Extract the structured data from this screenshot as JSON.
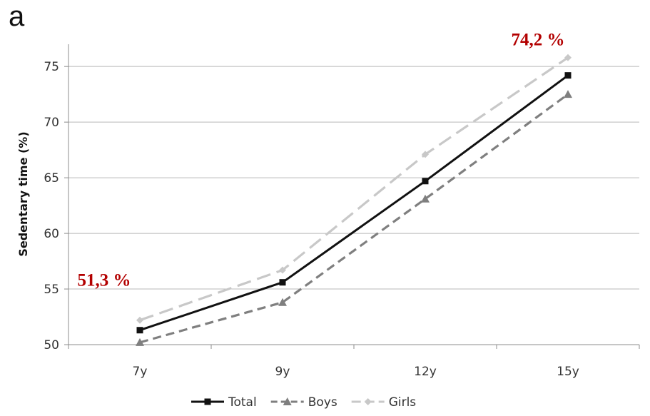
{
  "chart_data": {
    "type": "line",
    "panel_label": "a",
    "title": "",
    "xlabel": "",
    "ylabel": "Sedentary time (%)",
    "categories": [
      "7y",
      "9y",
      "12y",
      "15y"
    ],
    "ylim": [
      50,
      77
    ],
    "yticks": [
      50,
      55,
      60,
      65,
      70,
      75
    ],
    "grid": "horizontal",
    "legend_position": "bottom",
    "series": [
      {
        "name": "Total",
        "values": [
          51.3,
          55.6,
          64.7,
          74.2
        ],
        "color": "#111111",
        "dash": "solid",
        "marker": "square"
      },
      {
        "name": "Boys",
        "values": [
          50.2,
          53.8,
          63.1,
          72.5
        ],
        "color": "#7f7f7f",
        "dash": "dashed",
        "marker": "triangle"
      },
      {
        "name": "Girls",
        "values": [
          52.2,
          56.7,
          67.1,
          75.8
        ],
        "color": "#c8c8c8",
        "dash": "long-dashed",
        "marker": "diamond"
      }
    ],
    "annotations": [
      {
        "text": "51,3 %",
        "color": "#b30000",
        "category": "7y",
        "series": "Total"
      },
      {
        "text": "74,2 %",
        "color": "#b30000",
        "category": "15y",
        "series": "Total"
      }
    ]
  }
}
